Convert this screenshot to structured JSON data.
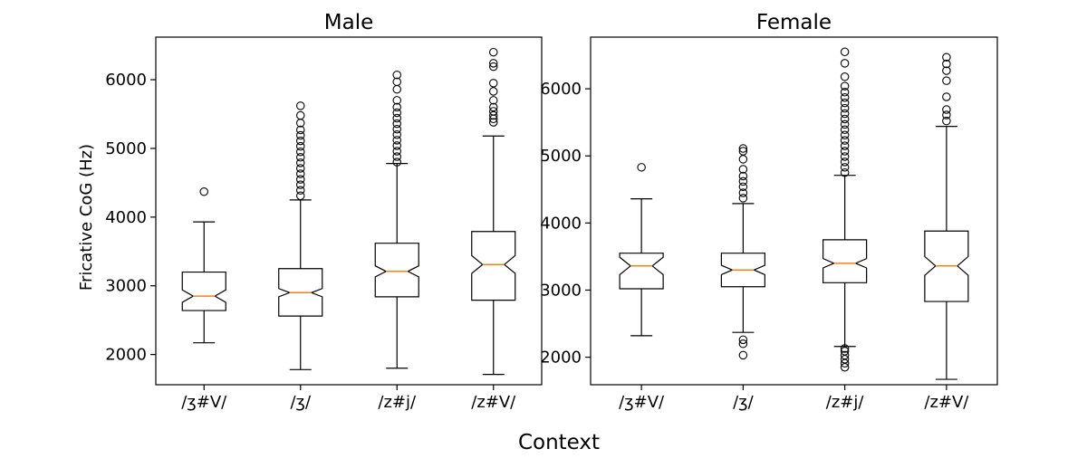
{
  "figure": {
    "xlabel": "Context",
    "ylabel": "Fricative CoG (Hz)"
  },
  "chart_data": [
    {
      "type": "boxplot",
      "title": "Male",
      "categories": [
        "/ʒ#V/",
        "/ʒ/",
        "/z#j/",
        "/z#V/"
      ],
      "ylim": [
        1560,
        6620
      ],
      "yticks": [
        2000,
        3000,
        4000,
        5000,
        6000
      ],
      "notched": true,
      "median_color": "#ff7f0e",
      "boxes": [
        {
          "category": "/ʒ#V/",
          "whisker_low": 2170,
          "q1": 2640,
          "median": 2850,
          "q3": 3200,
          "whisker_high": 3930,
          "notch_low": 2760,
          "notch_high": 2940,
          "outliers": [
            4370
          ]
        },
        {
          "category": "/ʒ/",
          "whisker_low": 1780,
          "q1": 2560,
          "median": 2900,
          "q3": 3250,
          "whisker_high": 4250,
          "notch_low": 2840,
          "notch_high": 2960,
          "outliers": [
            4310,
            4390,
            4470,
            4550,
            4630,
            4710,
            4790,
            4870,
            4950,
            5030,
            5110,
            5190,
            5270,
            5370,
            5480,
            5620
          ]
        },
        {
          "category": "/z#j/",
          "whisker_low": 1800,
          "q1": 2840,
          "median": 3210,
          "q3": 3620,
          "whisker_high": 4780,
          "notch_low": 3130,
          "notch_high": 3290,
          "outliers": [
            4800,
            4880,
            4960,
            5040,
            5120,
            5200,
            5280,
            5360,
            5440,
            5520,
            5600,
            5700,
            5860,
            5970,
            6070
          ]
        },
        {
          "category": "/z#V/",
          "whisker_low": 1710,
          "q1": 2790,
          "median": 3310,
          "q3": 3790,
          "whisker_high": 5180,
          "notch_low": 3180,
          "notch_high": 3440,
          "outliers": [
            5380,
            5430,
            5480,
            5540,
            5600,
            5700,
            5830,
            5950,
            6190,
            6240,
            6400
          ]
        }
      ]
    },
    {
      "type": "boxplot",
      "title": "Female",
      "categories": [
        "/ʒ#V/",
        "/ʒ/",
        "/z#j/",
        "/z#V/"
      ],
      "ylim": [
        1590,
        6770
      ],
      "yticks": [
        2000,
        3000,
        4000,
        5000,
        6000
      ],
      "notched": true,
      "median_color": "#ff7f0e",
      "boxes": [
        {
          "category": "/ʒ#V/",
          "whisker_low": 2320,
          "q1": 3020,
          "median": 3360,
          "q3": 3550,
          "whisker_high": 4360,
          "notch_low": 3230,
          "notch_high": 3490,
          "outliers": [
            4830
          ]
        },
        {
          "category": "/ʒ/",
          "whisker_low": 2370,
          "q1": 3050,
          "median": 3300,
          "q3": 3550,
          "whisker_high": 4290,
          "notch_low": 3230,
          "notch_high": 3370,
          "outliers": [
            2030,
            2200,
            2260,
            4370,
            4450,
            4540,
            4620,
            4700,
            4800,
            4950,
            5070,
            5110
          ]
        },
        {
          "category": "/z#j/",
          "whisker_low": 2160,
          "q1": 3110,
          "median": 3400,
          "q3": 3750,
          "whisker_high": 4710,
          "notch_low": 3330,
          "notch_high": 3470,
          "outliers": [
            1850,
            1910,
            1970,
            2030,
            2090,
            2130,
            4750,
            4830,
            4910,
            4990,
            5070,
            5150,
            5230,
            5310,
            5390,
            5470,
            5550,
            5630,
            5710,
            5790,
            5870,
            5950,
            6040,
            6180,
            6380,
            6550
          ]
        },
        {
          "category": "/z#V/",
          "whisker_low": 1670,
          "q1": 2830,
          "median": 3360,
          "q3": 3880,
          "whisker_high": 5440,
          "notch_low": 3220,
          "notch_high": 3500,
          "outliers": [
            5520,
            5610,
            5690,
            5880,
            6120,
            6270,
            6370,
            6470
          ]
        }
      ]
    }
  ]
}
